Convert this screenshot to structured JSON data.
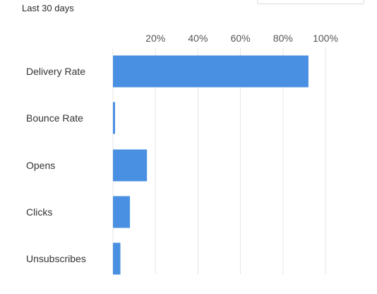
{
  "header": {
    "period_label": "Last 30 days"
  },
  "chart_data": {
    "type": "bar",
    "orientation": "horizontal",
    "title": "",
    "xlabel": "",
    "ylabel": "",
    "categories": [
      "Delivery Rate",
      "Bounce Rate",
      "Opens",
      "Clicks",
      "Unsubscribes"
    ],
    "values": [
      92,
      1,
      16,
      8,
      3.5
    ],
    "unit": "%",
    "xlim": [
      0,
      100
    ],
    "ticks": [
      20,
      40,
      60,
      80,
      100
    ],
    "tick_labels": [
      "20%",
      "40%",
      "60%",
      "80%",
      "100%"
    ],
    "grid": true,
    "legend": "none",
    "bar_color": "#4a90e2",
    "grid_color": "#e6e6e6"
  }
}
